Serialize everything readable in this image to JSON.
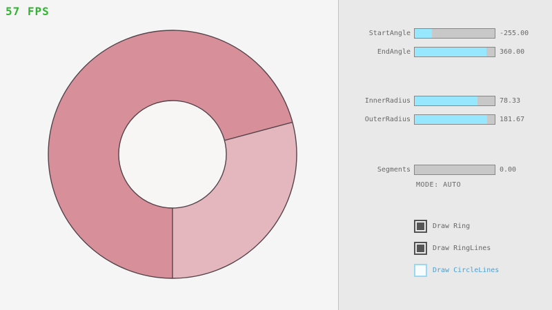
{
  "window": {
    "fps_label": "57 FPS"
  },
  "colors": {
    "fps_green": "#31b431",
    "canvas_bg": "#f5f5f5",
    "panel_bg": "#e9e9e9",
    "slider_fill": "#97e8ff",
    "slider_track": "#c8c8c8",
    "label_gray": "#686868",
    "checkbox_checked": "#525252",
    "checkbox_unchecked_border": "#99d7f2",
    "checkbox_unchecked_text": "#4d9fd0",
    "ring_dark": "#d78f99",
    "ring_light": "#e4b7be",
    "ring_line": "#53434a",
    "ring_hole": "#f8f5f5"
  },
  "sliders": [
    {
      "id": "start-angle",
      "label": "StartAngle",
      "value": "-255.00",
      "fill_pct": 21.7
    },
    {
      "id": "end-angle",
      "label": "EndAngle",
      "value": "360.00",
      "fill_pct": 90.0
    },
    {
      "id": "inner-radius",
      "label": "InnerRadius",
      "value": "78.33",
      "fill_pct": 78.3
    },
    {
      "id": "outer-radius",
      "label": "OuterRadius",
      "value": "181.67",
      "fill_pct": 90.8
    },
    {
      "id": "segments",
      "label": "Segments",
      "value": "0.00",
      "fill_pct": 0
    }
  ],
  "mode_text": "MODE: AUTO",
  "checkboxes": [
    {
      "id": "draw-ring",
      "label": "Draw Ring",
      "checked": true
    },
    {
      "id": "draw-ringlines",
      "label": "Draw RingLines",
      "checked": true
    },
    {
      "id": "draw-circlelines",
      "label": "Draw CircleLines",
      "checked": false
    }
  ],
  "ring": {
    "start_angle": -255.0,
    "end_angle": 360.0,
    "inner_radius": 78.33,
    "outer_radius": 181.67,
    "segments": 0,
    "mode": "AUTO"
  }
}
